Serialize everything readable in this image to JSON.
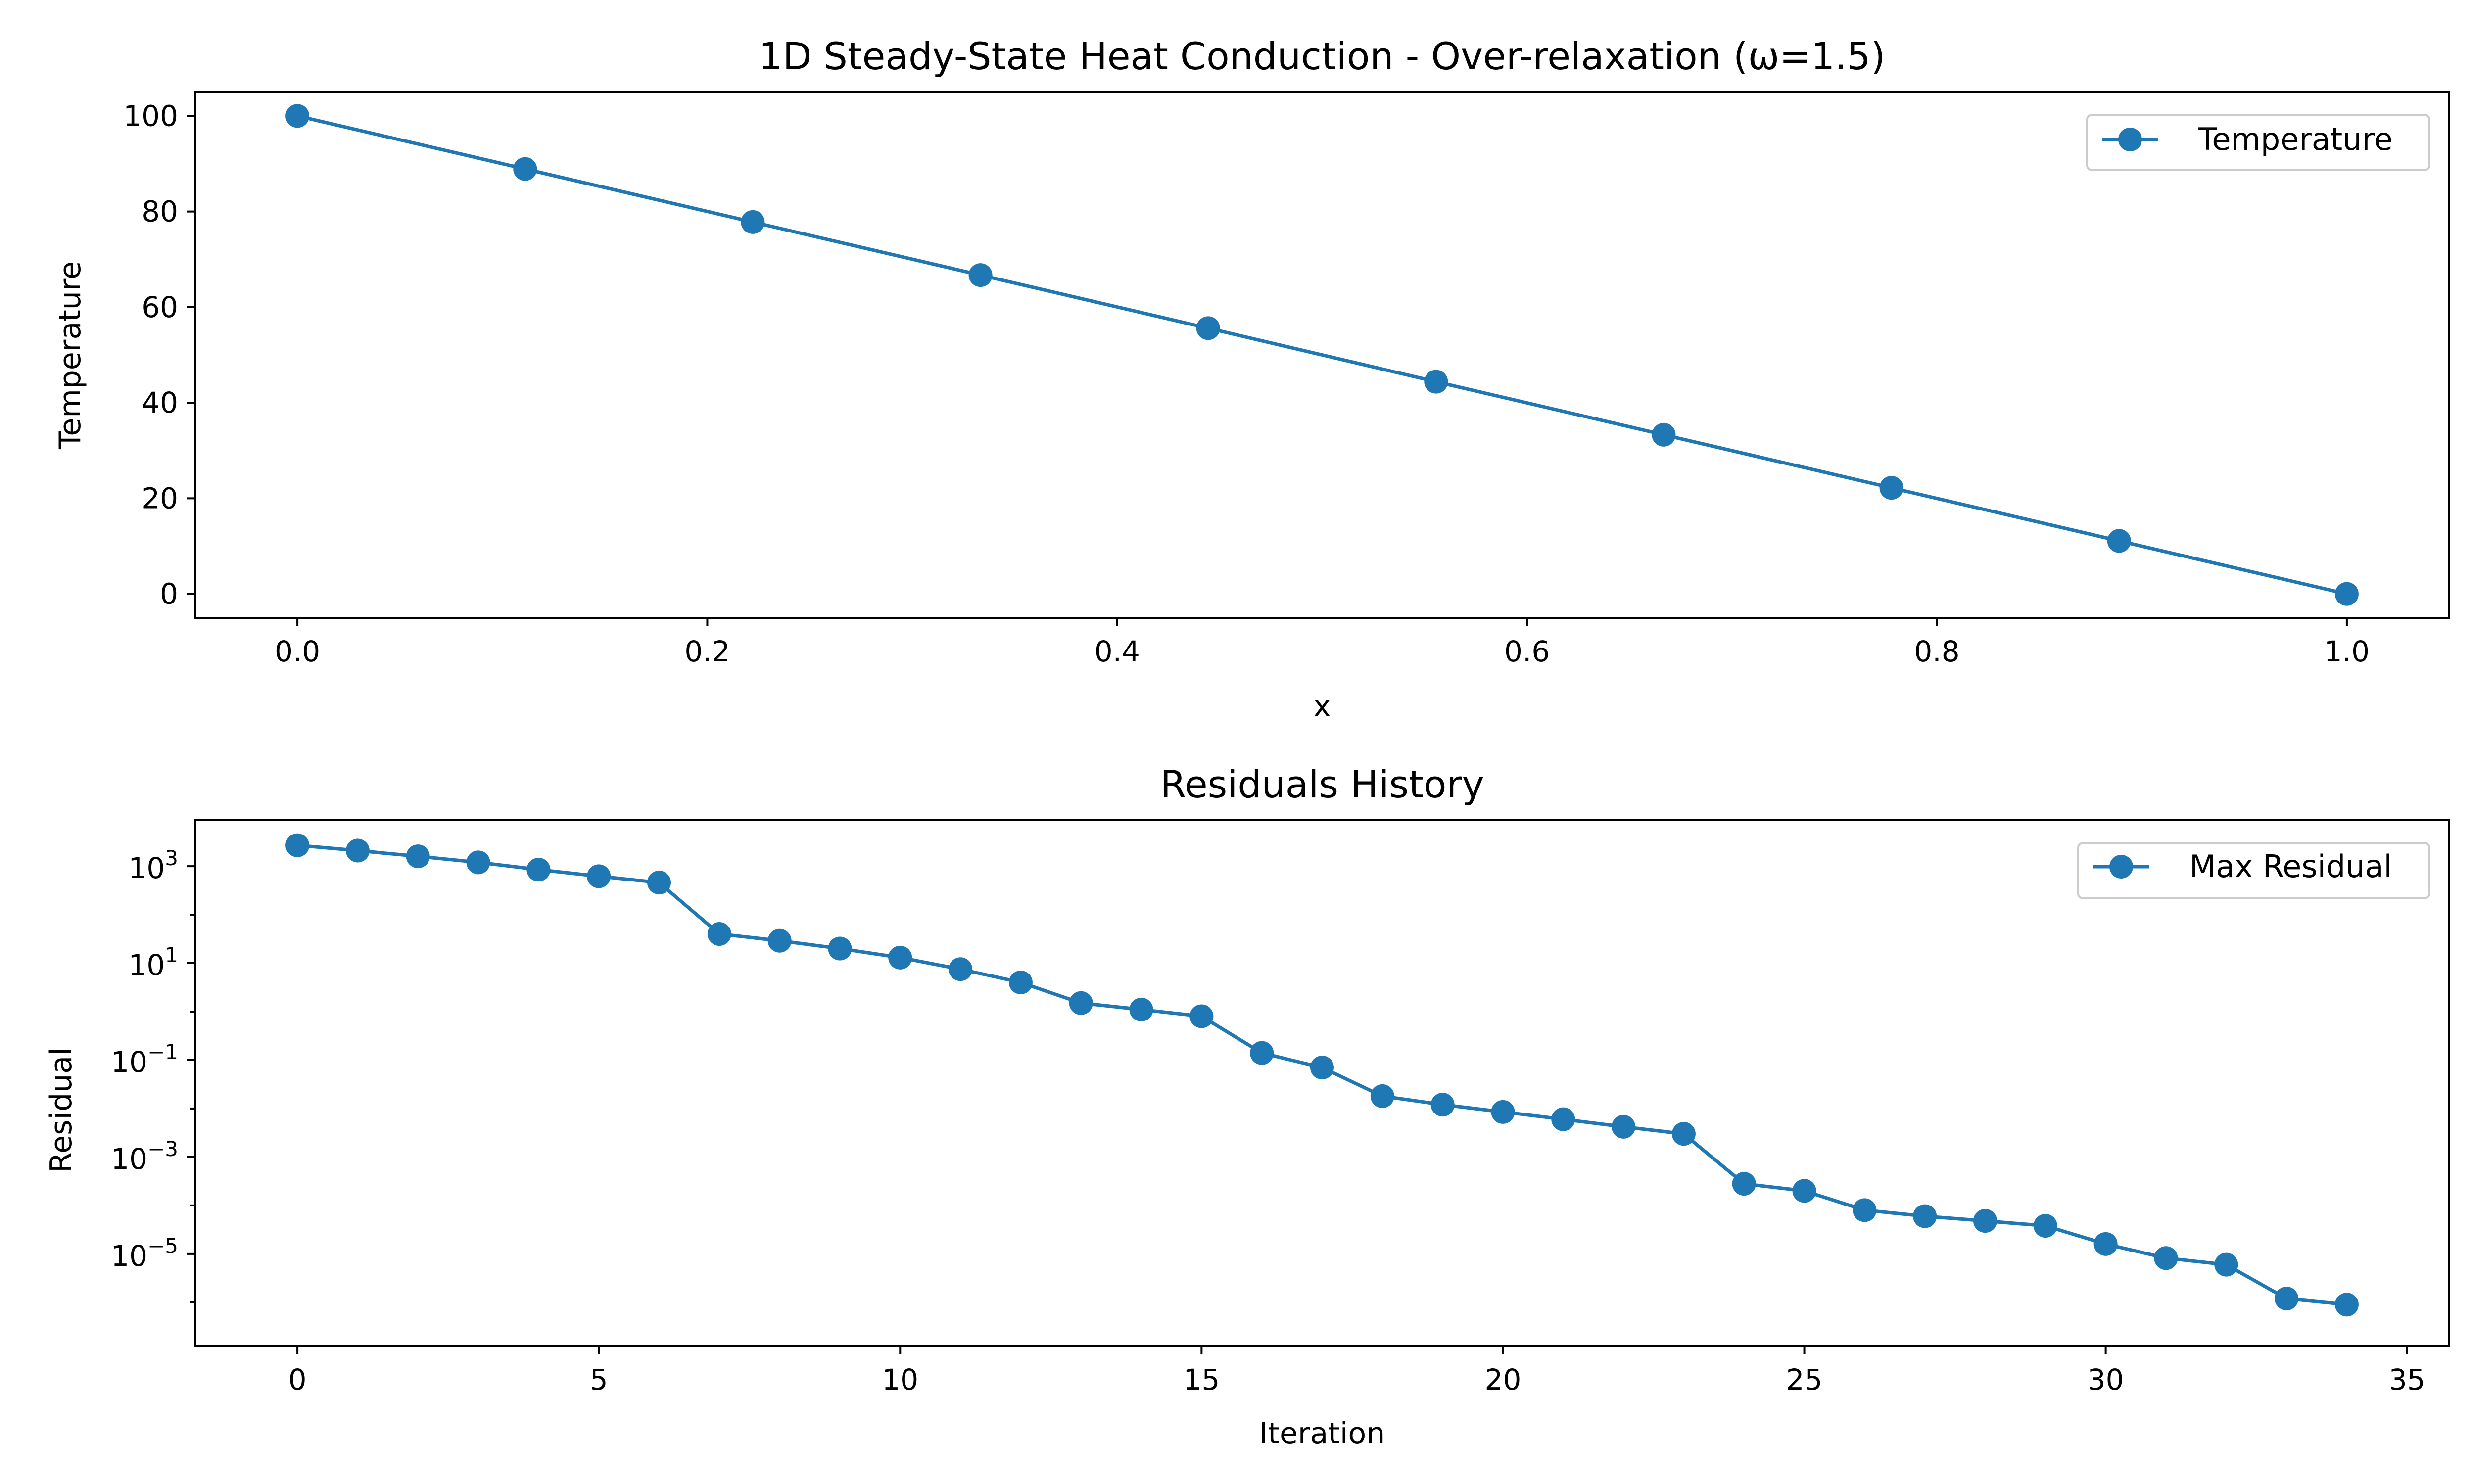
{
  "colors": {
    "series": "#1f77b4",
    "axes": "#000000",
    "background": "#ffffff"
  },
  "chart_data": [
    {
      "type": "line",
      "title": "1D Steady-State Heat Conduction - Over-relaxation (ω=1.5)",
      "xlabel": "x",
      "ylabel": "Temperature",
      "xlim": [
        -0.05,
        1.05
      ],
      "ylim": [
        -5,
        105
      ],
      "yscale": "linear",
      "xticks": [
        0.0,
        0.2,
        0.4,
        0.6,
        0.8,
        1.0
      ],
      "xtick_labels": [
        "0.0",
        "0.2",
        "0.4",
        "0.6",
        "0.8",
        "1.0"
      ],
      "yticks": [
        0,
        20,
        40,
        60,
        80,
        100
      ],
      "ytick_labels": [
        "0",
        "20",
        "40",
        "60",
        "80",
        "100"
      ],
      "grid": false,
      "legend_position": "top-right",
      "series": [
        {
          "name": "Temperature",
          "marker": "circle",
          "x": [
            0.0,
            0.1111,
            0.2222,
            0.3333,
            0.4444,
            0.5556,
            0.6667,
            0.7778,
            0.8889,
            1.0
          ],
          "y": [
            100.0,
            88.9,
            77.8,
            66.7,
            55.6,
            44.4,
            33.3,
            22.2,
            11.1,
            0.0
          ]
        }
      ]
    },
    {
      "type": "line",
      "title": "Residuals History",
      "xlabel": "Iteration",
      "ylabel": "Residual",
      "xlim": [
        -1.7,
        35.7
      ],
      "ylim_log10": [
        -6.9,
        3.95
      ],
      "yscale": "log",
      "xticks": [
        0,
        5,
        10,
        15,
        20,
        25,
        30,
        35
      ],
      "xtick_labels": [
        "0",
        "5",
        "10",
        "15",
        "20",
        "25",
        "30",
        "35"
      ],
      "ytick_exponents": [
        3,
        1,
        -1,
        -3,
        -5
      ],
      "ytick_base": "10",
      "ytick_exponent_labels": [
        "3",
        "1",
        "−1",
        "−3",
        "−5"
      ],
      "grid": false,
      "legend_position": "top-right",
      "series": [
        {
          "name": "Max Residual",
          "marker": "circle",
          "x": [
            0,
            1,
            2,
            3,
            4,
            5,
            6,
            7,
            8,
            9,
            10,
            11,
            12,
            13,
            14,
            15,
            16,
            17,
            18,
            19,
            20,
            21,
            22,
            23,
            24,
            25,
            26,
            27,
            28,
            29,
            30,
            31,
            32,
            33,
            34
          ],
          "y": [
            2700,
            2100,
            1600,
            1200,
            850,
            620,
            460,
            40,
            29,
            20,
            13,
            7.5,
            4.0,
            1.5,
            1.1,
            0.8,
            0.14,
            0.07,
            0.018,
            0.012,
            0.0085,
            0.006,
            0.0042,
            0.003,
            0.00028,
            0.0002,
            8e-05,
            6e-05,
            4.8e-05,
            3.8e-05,
            1.6e-05,
            8.2e-06,
            6e-06,
            1.2e-06,
            9e-07
          ]
        }
      ]
    }
  ]
}
